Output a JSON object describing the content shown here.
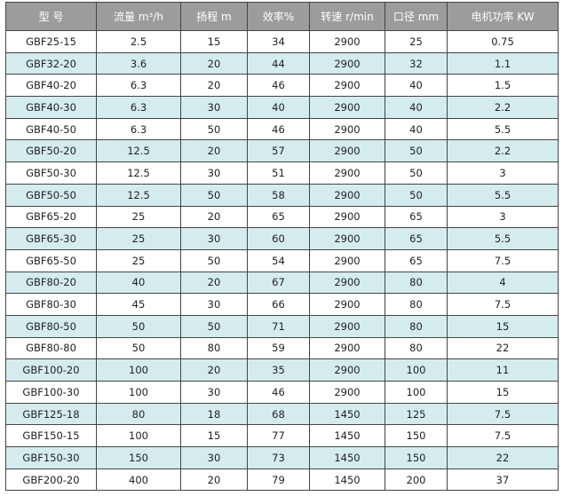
{
  "table": {
    "header": [
      "型 号",
      "流量 m³/h",
      "扬程 m",
      "效率%",
      "转速 r/min",
      "口径 mm",
      "电机功率 KW"
    ],
    "rows": [
      [
        "GBF25-15",
        "2.5",
        "15",
        "34",
        "2900",
        "25",
        "0.75"
      ],
      [
        "GBF32-20",
        "3.6",
        "20",
        "44",
        "2900",
        "32",
        "1.1"
      ],
      [
        "GBF40-20",
        "6.3",
        "20",
        "46",
        "2900",
        "40",
        "1.5"
      ],
      [
        "GBF40-30",
        "6.3",
        "30",
        "40",
        "2900",
        "40",
        "2.2"
      ],
      [
        "GBF40-50",
        "6.3",
        "50",
        "46",
        "2900",
        "40",
        "5.5"
      ],
      [
        "GBF50-20",
        "12.5",
        "20",
        "57",
        "2900",
        "50",
        "2.2"
      ],
      [
        "GBF50-30",
        "12.5",
        "30",
        "51",
        "2900",
        "50",
        "3"
      ],
      [
        "GBF50-50",
        "12.5",
        "50",
        "58",
        "2900",
        "50",
        "5.5"
      ],
      [
        "GBF65-20",
        "25",
        "20",
        "65",
        "2900",
        "65",
        "3"
      ],
      [
        "GBF65-30",
        "25",
        "30",
        "60",
        "2900",
        "65",
        "5.5"
      ],
      [
        "GBF65-50",
        "25",
        "50",
        "54",
        "2900",
        "65",
        "7.5"
      ],
      [
        "GBF80-20",
        "40",
        "20",
        "67",
        "2900",
        "80",
        "4"
      ],
      [
        "GBF80-30",
        "45",
        "30",
        "66",
        "2900",
        "80",
        "7.5"
      ],
      [
        "GBF80-50",
        "50",
        "50",
        "71",
        "2900",
        "80",
        "15"
      ],
      [
        "GBF80-80",
        "50",
        "80",
        "59",
        "2900",
        "80",
        "22"
      ],
      [
        "GBF100-20",
        "100",
        "20",
        "35",
        "2900",
        "100",
        "11"
      ],
      [
        "GBF100-30",
        "100",
        "30",
        "46",
        "2900",
        "100",
        "15"
      ],
      [
        "GBF125-18",
        "80",
        "18",
        "68",
        "1450",
        "125",
        "7.5"
      ],
      [
        "GBF150-15",
        "100",
        "15",
        "77",
        "1450",
        "150",
        "7.5"
      ],
      [
        "GBF150-30",
        "150",
        "30",
        "73",
        "1450",
        "150",
        "22"
      ],
      [
        "GBF200-20",
        "400",
        "20",
        "79",
        "1450",
        "200",
        "37"
      ]
    ]
  }
}
